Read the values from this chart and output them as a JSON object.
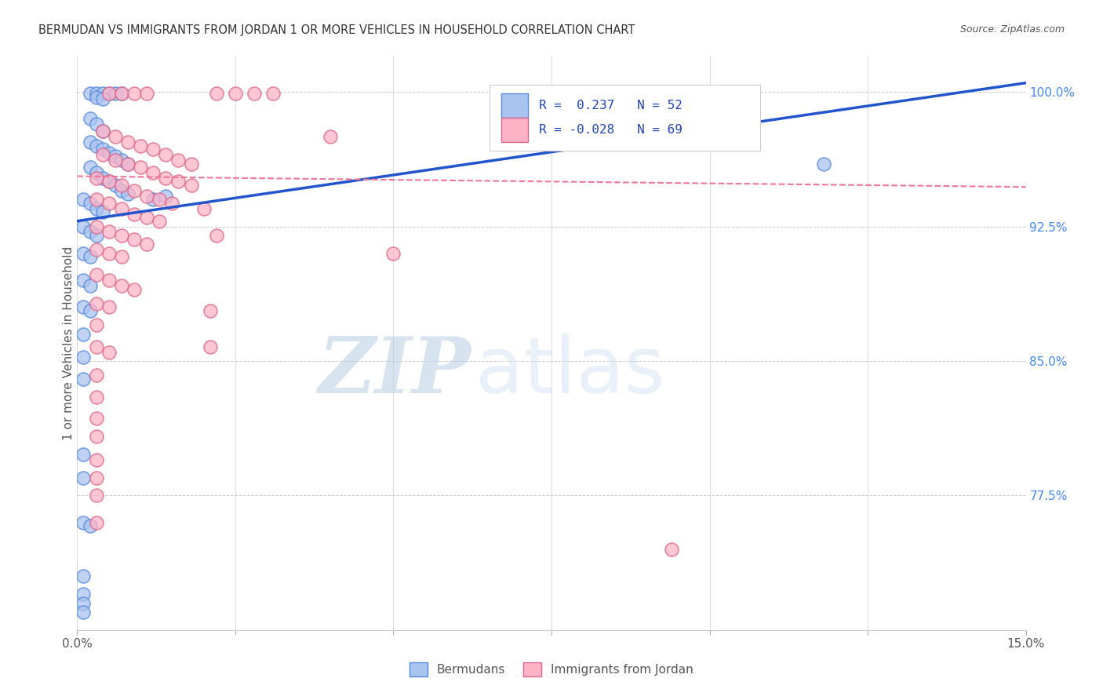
{
  "title": "BERMUDAN VS IMMIGRANTS FROM JORDAN 1 OR MORE VEHICLES IN HOUSEHOLD CORRELATION CHART",
  "source": "Source: ZipAtlas.com",
  "ylabel": "1 or more Vehicles in Household",
  "xlim": [
    0.0,
    0.15
  ],
  "ylim": [
    0.7,
    1.02
  ],
  "xticks": [
    0.0,
    0.025,
    0.05,
    0.075,
    0.1,
    0.125,
    0.15
  ],
  "xticklabels": [
    "0.0%",
    "",
    "",
    "",
    "",
    "",
    "15.0%"
  ],
  "ytick_positions": [
    0.775,
    0.85,
    0.925,
    1.0
  ],
  "ytick_labels": [
    "77.5%",
    "85.0%",
    "92.5%",
    "100.0%"
  ],
  "legend_entries": [
    {
      "label": "R =  0.237   N = 52",
      "color": "#aac4f0"
    },
    {
      "label": "R = -0.028   N = 69",
      "color": "#ffb3c6"
    }
  ],
  "bermudans_scatter": [
    [
      0.002,
      0.999
    ],
    [
      0.003,
      0.999
    ],
    [
      0.004,
      0.999
    ],
    [
      0.005,
      0.999
    ],
    [
      0.006,
      0.999
    ],
    [
      0.007,
      0.999
    ],
    [
      0.003,
      0.997
    ],
    [
      0.004,
      0.996
    ],
    [
      0.002,
      0.985
    ],
    [
      0.003,
      0.982
    ],
    [
      0.004,
      0.978
    ],
    [
      0.002,
      0.972
    ],
    [
      0.003,
      0.97
    ],
    [
      0.004,
      0.968
    ],
    [
      0.005,
      0.966
    ],
    [
      0.006,
      0.964
    ],
    [
      0.007,
      0.962
    ],
    [
      0.008,
      0.96
    ],
    [
      0.002,
      0.958
    ],
    [
      0.003,
      0.955
    ],
    [
      0.004,
      0.952
    ],
    [
      0.005,
      0.95
    ],
    [
      0.006,
      0.948
    ],
    [
      0.007,
      0.945
    ],
    [
      0.008,
      0.943
    ],
    [
      0.001,
      0.94
    ],
    [
      0.002,
      0.938
    ],
    [
      0.003,
      0.935
    ],
    [
      0.004,
      0.933
    ],
    [
      0.012,
      0.94
    ],
    [
      0.014,
      0.942
    ],
    [
      0.001,
      0.925
    ],
    [
      0.002,
      0.922
    ],
    [
      0.003,
      0.92
    ],
    [
      0.001,
      0.91
    ],
    [
      0.002,
      0.908
    ],
    [
      0.001,
      0.895
    ],
    [
      0.002,
      0.892
    ],
    [
      0.001,
      0.88
    ],
    [
      0.002,
      0.878
    ],
    [
      0.001,
      0.865
    ],
    [
      0.001,
      0.852
    ],
    [
      0.001,
      0.84
    ],
    [
      0.001,
      0.798
    ],
    [
      0.001,
      0.785
    ],
    [
      0.001,
      0.76
    ],
    [
      0.002,
      0.758
    ],
    [
      0.001,
      0.73
    ],
    [
      0.118,
      0.96
    ],
    [
      0.001,
      0.72
    ],
    [
      0.001,
      0.715
    ],
    [
      0.001,
      0.71
    ]
  ],
  "jordan_scatter": [
    [
      0.005,
      0.999
    ],
    [
      0.007,
      0.999
    ],
    [
      0.009,
      0.999
    ],
    [
      0.011,
      0.999
    ],
    [
      0.022,
      0.999
    ],
    [
      0.025,
      0.999
    ],
    [
      0.028,
      0.999
    ],
    [
      0.031,
      0.999
    ],
    [
      0.004,
      0.978
    ],
    [
      0.006,
      0.975
    ],
    [
      0.008,
      0.972
    ],
    [
      0.01,
      0.97
    ],
    [
      0.012,
      0.968
    ],
    [
      0.014,
      0.965
    ],
    [
      0.016,
      0.962
    ],
    [
      0.018,
      0.96
    ],
    [
      0.004,
      0.965
    ],
    [
      0.006,
      0.962
    ],
    [
      0.008,
      0.96
    ],
    [
      0.01,
      0.958
    ],
    [
      0.012,
      0.955
    ],
    [
      0.014,
      0.952
    ],
    [
      0.016,
      0.95
    ],
    [
      0.018,
      0.948
    ],
    [
      0.003,
      0.952
    ],
    [
      0.005,
      0.95
    ],
    [
      0.007,
      0.948
    ],
    [
      0.009,
      0.945
    ],
    [
      0.011,
      0.942
    ],
    [
      0.013,
      0.94
    ],
    [
      0.015,
      0.938
    ],
    [
      0.02,
      0.935
    ],
    [
      0.003,
      0.94
    ],
    [
      0.005,
      0.938
    ],
    [
      0.007,
      0.935
    ],
    [
      0.009,
      0.932
    ],
    [
      0.011,
      0.93
    ],
    [
      0.013,
      0.928
    ],
    [
      0.04,
      0.975
    ],
    [
      0.022,
      0.92
    ],
    [
      0.003,
      0.925
    ],
    [
      0.005,
      0.922
    ],
    [
      0.007,
      0.92
    ],
    [
      0.009,
      0.918
    ],
    [
      0.011,
      0.915
    ],
    [
      0.003,
      0.912
    ],
    [
      0.005,
      0.91
    ],
    [
      0.007,
      0.908
    ],
    [
      0.003,
      0.898
    ],
    [
      0.005,
      0.895
    ],
    [
      0.007,
      0.892
    ],
    [
      0.009,
      0.89
    ],
    [
      0.003,
      0.882
    ],
    [
      0.005,
      0.88
    ],
    [
      0.021,
      0.878
    ],
    [
      0.003,
      0.87
    ],
    [
      0.003,
      0.858
    ],
    [
      0.005,
      0.855
    ],
    [
      0.003,
      0.842
    ],
    [
      0.003,
      0.83
    ],
    [
      0.003,
      0.818
    ],
    [
      0.003,
      0.808
    ],
    [
      0.021,
      0.858
    ],
    [
      0.05,
      0.91
    ],
    [
      0.003,
      0.795
    ],
    [
      0.003,
      0.785
    ],
    [
      0.003,
      0.775
    ],
    [
      0.094,
      0.745
    ],
    [
      0.003,
      0.76
    ]
  ],
  "blue_line": [
    [
      0.0,
      0.928
    ],
    [
      0.15,
      1.005
    ]
  ],
  "pink_line": [
    [
      0.0,
      0.953
    ],
    [
      0.15,
      0.947
    ]
  ],
  "bermudans_color": "#aac4f0",
  "bermudans_edge": "#5588dd",
  "jordan_color": "#ffb3c6",
  "jordan_edge": "#dd6688",
  "blue_line_color": "#2255cc",
  "pink_line_color": "#ee7799",
  "watermark_zip": "ZIP",
  "watermark_atlas": "atlas",
  "background_color": "#ffffff",
  "grid_color": "#cccccc"
}
